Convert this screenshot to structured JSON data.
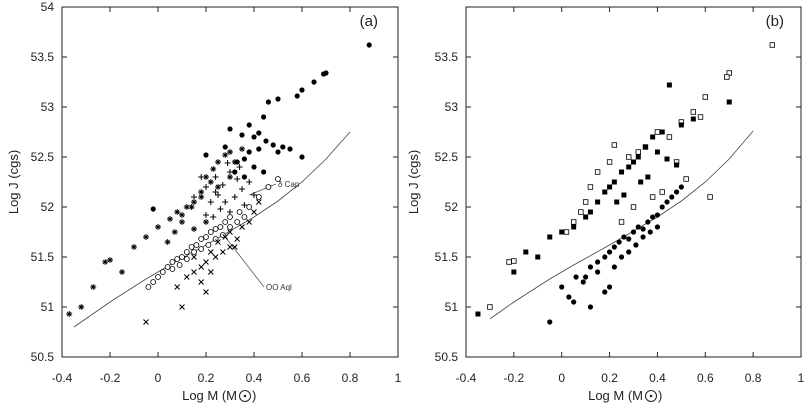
{
  "chart_data": [
    {
      "type": "scatter",
      "panel_label": "(a)",
      "xlabel_main": "Log M (M",
      "xlabel_close": ")",
      "ylabel": "Log J (cgs)",
      "xlim": [
        -0.4,
        1.0
      ],
      "ylim": [
        50.5,
        54.0
      ],
      "x_ticks": [
        -0.4,
        -0.2,
        0,
        0.2,
        0.4,
        0.6,
        0.8,
        1
      ],
      "x_tick_labels": [
        "-0.4",
        "-0.2",
        "0",
        "0.2",
        "0.4",
        "0.6",
        "0.8",
        "1"
      ],
      "y_ticks": [
        50.5,
        51,
        51.5,
        52,
        52.5,
        53,
        53.5,
        54
      ],
      "y_tick_labels": [
        "50.5",
        "51",
        "51.5",
        "52",
        "52.5",
        "53",
        "53.5",
        "54"
      ],
      "curve": {
        "name": "fit",
        "x": [
          -0.35,
          -0.2,
          -0.05,
          0.05,
          0.2,
          0.3,
          0.4,
          0.5,
          0.6,
          0.7,
          0.8
        ],
        "y": [
          50.8,
          51.05,
          51.28,
          51.42,
          51.62,
          51.76,
          51.9,
          52.06,
          52.25,
          52.48,
          52.75
        ]
      },
      "annotations": [
        {
          "text": "δ Cap",
          "x": 0.5,
          "y": 52.23,
          "line_to_x": 0.38,
          "line_to_y": 52.12
        },
        {
          "text": "OO Aql",
          "x": 0.45,
          "y": 51.2,
          "line_to_x": 0.28,
          "line_to_y": 51.7
        }
      ],
      "series": [
        {
          "name": "filled circles",
          "marker": "filled-circle",
          "x": [
            0.88,
            0.7,
            0.69,
            0.65,
            0.6,
            0.58,
            0.5,
            0.46,
            0.44,
            0.38,
            0.3,
            0.35,
            0.4,
            0.42,
            0.45,
            0.48,
            0.5,
            0.52,
            0.55,
            0.6,
            0.38,
            0.42,
            0.33,
            0.36,
            0.4,
            0.44,
            0.2,
            0.28,
            0.32,
            0.36,
            -0.02
          ],
          "y": [
            53.62,
            53.34,
            53.33,
            53.25,
            53.17,
            53.11,
            53.08,
            53.05,
            52.9,
            52.82,
            52.78,
            52.72,
            52.7,
            52.74,
            52.66,
            52.62,
            52.55,
            52.6,
            52.58,
            52.5,
            52.55,
            52.58,
            52.45,
            52.48,
            52.4,
            52.35,
            52.52,
            52.6,
            52.35,
            52.3,
            51.98
          ]
        },
        {
          "name": "plus",
          "marker": "plus",
          "x": [
            0.2,
            0.24,
            0.27,
            0.3,
            0.33,
            0.35,
            0.38,
            0.4,
            0.25,
            0.22,
            0.28,
            0.32,
            0.36,
            0.3,
            0.26,
            0.23,
            0.2,
            0.34,
            0.29,
            0.18,
            0.15,
            0.24
          ],
          "y": [
            52.2,
            52.3,
            52.22,
            52.35,
            52.28,
            52.18,
            52.25,
            52.12,
            52.12,
            52.05,
            52.05,
            52.1,
            52.02,
            51.95,
            51.98,
            51.9,
            51.92,
            52.4,
            52.44,
            52.3,
            52.1,
            52.15
          ]
        },
        {
          "name": "stars",
          "marker": "star",
          "x": [
            -0.37,
            -0.32,
            -0.27,
            -0.22,
            -0.2,
            -0.15,
            -0.1,
            -0.05,
            0.0,
            0.05,
            0.08,
            0.1,
            0.12,
            0.15,
            0.18,
            0.2,
            0.23,
            0.25,
            0.28,
            0.3,
            0.35,
            0.25,
            0.22,
            0.18,
            0.14,
            0.1,
            0.07,
            0.04,
            0.3,
            0.32,
            0.2,
            0.15
          ],
          "y": [
            50.93,
            51.0,
            51.2,
            51.45,
            51.47,
            51.35,
            51.6,
            51.7,
            51.8,
            51.88,
            51.95,
            51.92,
            52.0,
            52.05,
            52.1,
            52.3,
            52.38,
            52.45,
            52.52,
            52.55,
            52.58,
            52.2,
            52.25,
            52.15,
            52.0,
            51.85,
            51.75,
            51.65,
            52.3,
            52.45,
            51.85,
            51.78
          ]
        },
        {
          "name": "open circles",
          "marker": "open-circle",
          "x": [
            0.5,
            0.46,
            0.42,
            0.38,
            0.34,
            0.3,
            0.28,
            0.26,
            0.24,
            0.22,
            0.2,
            0.18,
            0.16,
            0.14,
            0.12,
            0.1,
            0.08,
            0.06,
            0.04,
            0.02,
            0.0,
            -0.02,
            -0.04,
            0.3,
            0.27,
            0.24,
            0.21,
            0.18,
            0.15,
            0.12,
            0.09,
            0.06,
            0.33,
            0.36
          ],
          "y": [
            52.28,
            52.2,
            52.1,
            52.0,
            51.95,
            51.9,
            51.85,
            51.8,
            51.78,
            51.75,
            51.7,
            51.68,
            51.62,
            51.6,
            51.55,
            51.5,
            51.48,
            51.45,
            51.4,
            51.35,
            51.3,
            51.25,
            51.2,
            51.8,
            51.72,
            51.68,
            51.62,
            51.58,
            51.55,
            51.48,
            51.42,
            51.38,
            51.85,
            51.9
          ]
        },
        {
          "name": "crosses",
          "marker": "cross",
          "x": [
            -0.05,
            0.1,
            0.15,
            0.18,
            0.2,
            0.22,
            0.25,
            0.28,
            0.3,
            0.32,
            0.35,
            0.38,
            0.4,
            0.42,
            0.15,
            0.12,
            0.2,
            0.22,
            0.24,
            0.08,
            0.27,
            0.3,
            0.33,
            0.18
          ],
          "y": [
            50.85,
            51.0,
            51.35,
            51.25,
            51.45,
            51.55,
            51.65,
            51.7,
            51.75,
            51.6,
            51.8,
            51.85,
            51.95,
            52.05,
            51.5,
            51.3,
            51.15,
            51.35,
            51.5,
            51.2,
            51.55,
            51.6,
            51.68,
            51.4
          ]
        }
      ]
    },
    {
      "type": "scatter",
      "panel_label": "(b)",
      "xlabel_main": "Log M (M",
      "xlabel_close": ")",
      "ylabel": "Log J (cgs)",
      "xlim": [
        -0.4,
        1.0
      ],
      "ylim": [
        50.5,
        54.0
      ],
      "x_ticks": [
        -0.4,
        -0.2,
        0,
        0.2,
        0.4,
        0.6,
        0.8,
        1
      ],
      "x_tick_labels": [
        "-0.4",
        "-0.2",
        "0",
        "0.2",
        "0.4",
        "0.6",
        "0.8",
        "1"
      ],
      "y_ticks": [
        50.5,
        51,
        51.5,
        52,
        52.5,
        53,
        53.5
      ],
      "y_tick_labels": [
        "50.5",
        "51",
        "51.5",
        "52",
        "52.5",
        "53",
        "53.5"
      ],
      "curve": {
        "name": "fit",
        "x": [
          -0.3,
          -0.2,
          -0.05,
          0.05,
          0.2,
          0.3,
          0.4,
          0.5,
          0.6,
          0.7,
          0.8
        ],
        "y": [
          50.88,
          51.05,
          51.28,
          51.42,
          51.62,
          51.76,
          51.9,
          52.06,
          52.25,
          52.48,
          52.76
        ]
      },
      "series": [
        {
          "name": "open squares",
          "marker": "open-square",
          "x": [
            0.88,
            0.7,
            0.69,
            0.6,
            0.55,
            0.5,
            0.45,
            0.4,
            0.35,
            0.32,
            0.28,
            0.22,
            0.2,
            0.15,
            0.12,
            0.1,
            0.08,
            0.05,
            0.02,
            0.48,
            0.52,
            0.42,
            0.38,
            0.3,
            0.25,
            -0.22,
            -0.2,
            -0.3,
            0.58,
            0.62
          ],
          "y": [
            53.62,
            53.34,
            53.3,
            53.1,
            52.95,
            52.85,
            52.7,
            52.75,
            52.6,
            52.55,
            52.5,
            52.62,
            52.45,
            52.35,
            52.2,
            52.05,
            51.95,
            51.85,
            51.75,
            52.45,
            52.28,
            52.15,
            52.1,
            52.0,
            51.85,
            51.45,
            51.46,
            51.0,
            52.9,
            52.1
          ]
        },
        {
          "name": "filled squares",
          "marker": "filled-square",
          "x": [
            0.45,
            0.7,
            0.55,
            0.5,
            0.42,
            0.38,
            0.35,
            0.32,
            0.3,
            0.28,
            0.25,
            0.22,
            0.2,
            0.18,
            0.15,
            0.12,
            0.4,
            0.44,
            0.48,
            0.36,
            0.33,
            0.26,
            0.23,
            0.1,
            0.05,
            0.0,
            -0.05,
            -0.1,
            -0.15,
            -0.2,
            -0.35
          ],
          "y": [
            53.22,
            53.05,
            52.88,
            52.82,
            52.75,
            52.7,
            52.6,
            52.5,
            52.45,
            52.4,
            52.35,
            52.25,
            52.2,
            52.15,
            52.05,
            51.95,
            52.55,
            52.48,
            52.42,
            52.3,
            52.25,
            52.12,
            52.05,
            51.9,
            51.8,
            51.75,
            51.7,
            51.5,
            51.55,
            51.35,
            50.93
          ]
        },
        {
          "name": "filled circles",
          "marker": "filled-circle",
          "x": [
            -0.05,
            0.0,
            0.03,
            0.06,
            0.09,
            0.12,
            0.15,
            0.18,
            0.2,
            0.22,
            0.24,
            0.26,
            0.28,
            0.3,
            0.32,
            0.34,
            0.36,
            0.38,
            0.4,
            0.42,
            0.44,
            0.46,
            0.48,
            0.5,
            0.05,
            0.1,
            0.15,
            0.2,
            0.25,
            0.28,
            0.31,
            0.34,
            0.37,
            0.4,
            0.12,
            0.18,
            0.22
          ],
          "y": [
            50.85,
            51.2,
            51.1,
            51.3,
            51.25,
            51.4,
            51.35,
            51.5,
            51.55,
            51.6,
            51.65,
            51.7,
            51.68,
            51.75,
            51.8,
            51.78,
            51.85,
            51.9,
            51.92,
            52.0,
            52.05,
            52.1,
            52.15,
            52.2,
            51.05,
            51.3,
            51.45,
            51.2,
            51.5,
            51.55,
            51.62,
            51.7,
            51.75,
            51.8,
            51.0,
            51.15,
            51.4
          ]
        }
      ]
    }
  ]
}
